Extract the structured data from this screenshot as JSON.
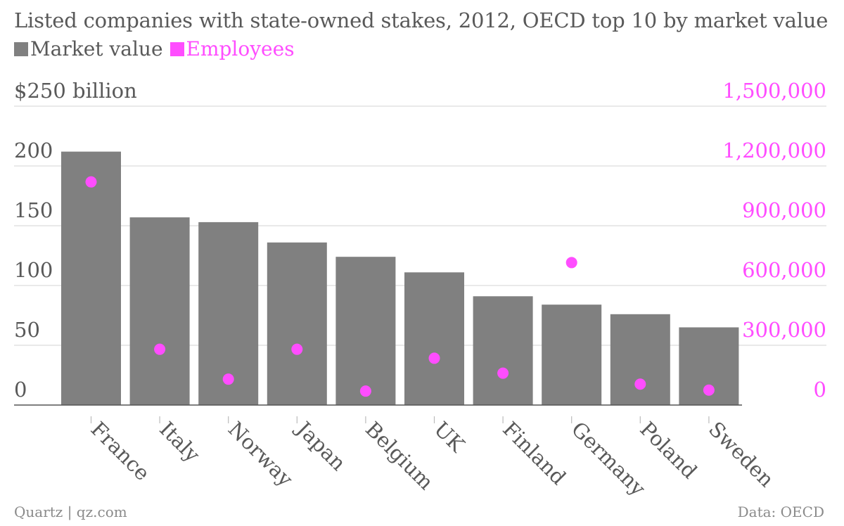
{
  "title": "Listed companies with state-owned stakes, 2012, OECD top 10 by market value",
  "footer": {
    "source_left": "Quartz | qz.com",
    "source_right": "Data: OECD"
  },
  "colors": {
    "bar": "#808080",
    "dot": "#ff4dff",
    "text": "#595959",
    "right_axis": "#ff4dff",
    "grid": "#dcdcdc"
  },
  "chart_data": {
    "type": "bar",
    "categories": [
      "France",
      "Italy",
      "Norway",
      "Japan",
      "Belgium",
      "UK",
      "Finland",
      "Germany",
      "Poland",
      "Sweden"
    ],
    "series": [
      {
        "name": "Market value",
        "axis": "left",
        "mark": "bar",
        "values": [
          212,
          157,
          153,
          136,
          124,
          111,
          91,
          84,
          76,
          65
        ]
      },
      {
        "name": "Employees",
        "axis": "right",
        "mark": "dot",
        "values": [
          1120000,
          280000,
          130000,
          280000,
          70000,
          235000,
          160000,
          715000,
          105000,
          75000
        ]
      }
    ],
    "left_axis": {
      "ylim": [
        0,
        250
      ],
      "ticks": [
        0,
        50,
        100,
        150,
        200,
        250
      ],
      "tick_labels": [
        "0",
        "50",
        "100",
        "150",
        "200",
        "$250 billion"
      ]
    },
    "right_axis": {
      "ylim": [
        0,
        1500000
      ],
      "ticks": [
        0,
        300000,
        600000,
        900000,
        1200000,
        1500000
      ],
      "tick_labels": [
        "0",
        "300,000",
        "600,000",
        "900,000",
        "1,200,000",
        "1,500,000"
      ]
    },
    "grid": true,
    "legend": "top-left"
  }
}
